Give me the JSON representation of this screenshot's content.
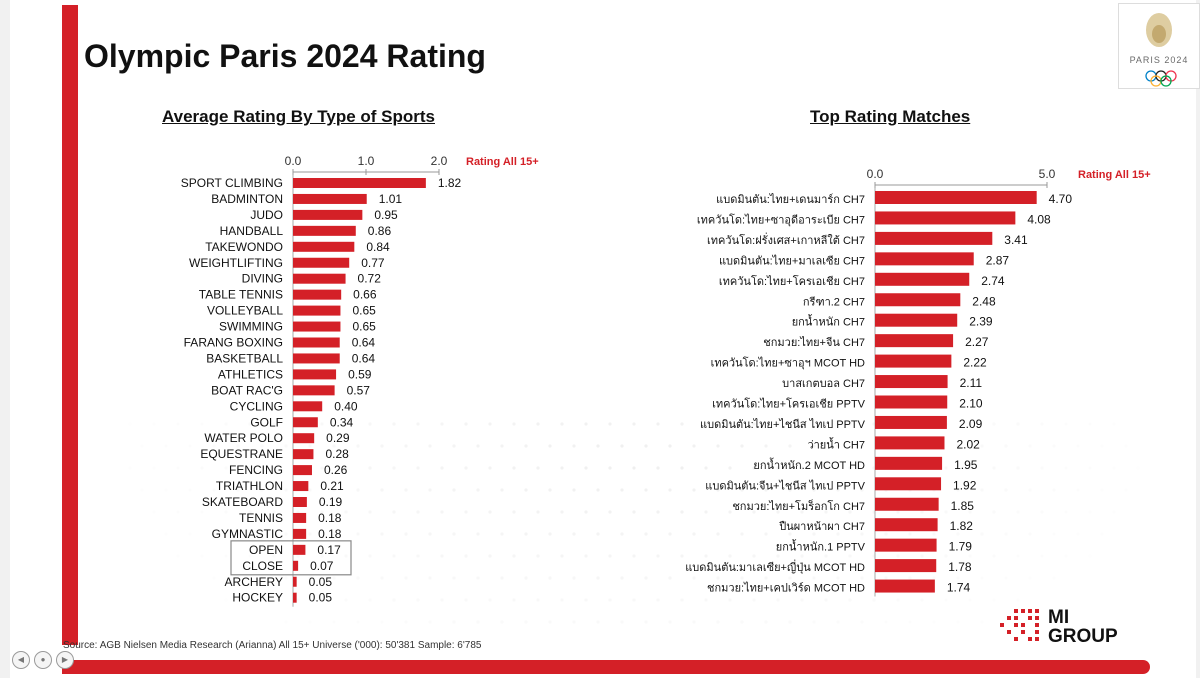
{
  "title": "Olympic Paris 2024 Rating",
  "logo": {
    "text": "PARIS 2024"
  },
  "brand": {
    "name_line1": "MI",
    "name_line2": "GROUP"
  },
  "source": "Source: AGB Nielsen Media Research (Arianna) All 15+ Universe ('000): 50'381 Sample: 6'785",
  "colors": {
    "bar": "#d42027",
    "accent": "#d42027",
    "text": "#111111"
  },
  "chart_data": [
    {
      "type": "bar",
      "orientation": "horizontal",
      "title": "Average Rating By Type of Sports",
      "series_label": "Rating All 15+",
      "xlim": [
        0,
        2.0
      ],
      "ticks": [
        "0.0",
        "1.0",
        "2.0"
      ],
      "tick_values": [
        0,
        1,
        2
      ],
      "value_labels": [
        "1.82",
        "1.01",
        "0.95",
        "0.86",
        "0.84",
        "0.77",
        "0.72",
        "0.66",
        "0.65",
        "0.65",
        "0.64",
        "0.64",
        "0.59",
        "0.57",
        "0.40",
        "0.34",
        "0.29",
        "0.28",
        "0.26",
        "0.21",
        "0.19",
        "0.18",
        "0.18",
        "0.17",
        "0.07",
        "0.05",
        "0.05"
      ],
      "highlight_box": [
        "OPEN",
        "CLOSE"
      ],
      "categories": [
        "SPORT CLIMBING",
        "BADMINTON",
        "JUDO",
        "HANDBALL",
        "TAKEWONDO",
        "WEIGHTLIFTING",
        "DIVING",
        "TABLE TENNIS",
        "VOLLEYBALL",
        "SWIMMING",
        "FARANG BOXING",
        "BASKETBALL",
        "ATHLETICS",
        "BOAT RAC'G",
        "CYCLING",
        "GOLF",
        "WATER POLO",
        "EQUESTRANE",
        "FENCING",
        "TRIATHLON",
        "SKATEBOARD",
        "TENNIS",
        "GYMNASTIC",
        "OPEN",
        "CLOSE",
        "ARCHERY",
        "HOCKEY"
      ],
      "values": [
        1.82,
        1.01,
        0.95,
        0.86,
        0.84,
        0.77,
        0.72,
        0.66,
        0.65,
        0.65,
        0.64,
        0.64,
        0.59,
        0.57,
        0.4,
        0.34,
        0.29,
        0.28,
        0.26,
        0.21,
        0.19,
        0.18,
        0.18,
        0.17,
        0.07,
        0.05,
        0.05
      ]
    },
    {
      "type": "bar",
      "orientation": "horizontal",
      "title": "Top Rating Matches",
      "series_label": "Rating All 15+",
      "xlim": [
        0,
        5.0
      ],
      "ticks": [
        "0.0",
        "5.0"
      ],
      "tick_values": [
        0,
        5
      ],
      "value_labels": [
        "4.70",
        "4.08",
        "3.41",
        "2.87",
        "2.74",
        "2.48",
        "2.39",
        "2.27",
        "2.22",
        "2.11",
        "2.10",
        "2.09",
        "2.02",
        "1.95",
        "1.92",
        "1.85",
        "1.82",
        "1.79",
        "1.78",
        "1.74"
      ],
      "categories": [
        "แบดมินตัน:ไทย+เดนมาร์ก CH7",
        "เทควันโด:ไทย+ซาอุดีอาระเบีย CH7",
        "เทควันโด:ฝรั่งเศส+เกาหลีใต้ CH7",
        "แบดมินตัน:ไทย+มาเลเซีย CH7",
        "เทควันโด:ไทย+โครเอเชีย CH7",
        "กรีฑา.2 CH7",
        "ยกน้ำหนัก CH7",
        "ชกมวย:ไทย+จีน CH7",
        "เทควันโด:ไทย+ซาอุฯ MCOT HD",
        "บาสเกตบอล CH7",
        "เทควันโด:ไทย+โครเอเชีย PPTV",
        "แบดมินตัน:ไทย+ไชนีส ไทเป PPTV",
        "ว่ายน้ำ CH7",
        "ยกน้ำหนัก.2 MCOT HD",
        "แบดมินตัน:จีน+ไชนีส ไทเป PPTV",
        "ชกมวย:ไทย+โมร็อกโก CH7",
        "ปืนผาหน้าผา CH7",
        "ยกน้ำหนัก.1 PPTV",
        "แบดมินตัน:มาเลเซีย+ญี่ปุ่น MCOT HD",
        "ชกมวย:ไทย+เคปเวิร์ด MCOT HD"
      ],
      "values": [
        4.7,
        4.08,
        3.41,
        2.87,
        2.74,
        2.48,
        2.39,
        2.27,
        2.22,
        2.11,
        2.1,
        2.09,
        2.02,
        1.95,
        1.92,
        1.85,
        1.82,
        1.79,
        1.78,
        1.74
      ]
    }
  ]
}
